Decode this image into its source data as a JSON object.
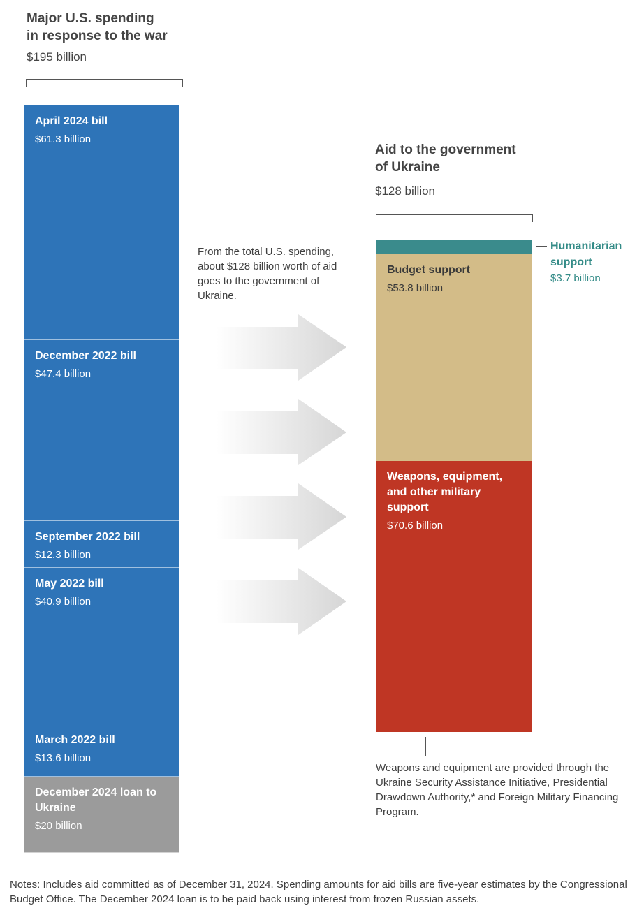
{
  "left": {
    "title_line1": "Major U.S. spending",
    "title_line2": "in response to the war",
    "total": "$195 billion"
  },
  "right": {
    "title_line1": "Aid to the government",
    "title_line2": "of Ukraine",
    "total": "$128 billion"
  },
  "middle_text": "From the total U.S. spending, about $128 billion worth of aid goes to the government of Ukraine.",
  "weapons_note": "Weapons and equipment are provided through the Ukraine Security Assistance Initiative, Presidential Drawdown Authority,* and Foreign Military Financing Program.",
  "footer": "Notes: Includes aid committed as of December 31, 2024. Spending amounts for aid bills are five-year estimates by the Congressional Budget Office. The December 2024 loan is to be paid back using interest from frozen Russian assets.",
  "colors": {
    "bills": "#2e74b8",
    "loan": "#9b9b9b",
    "humanitarian": "#3a8b8c",
    "budget": "#d3bc88",
    "weapons": "#bf3624",
    "arrow": "#d6d6d6"
  },
  "chart_data": [
    {
      "type": "bar",
      "stacked": true,
      "title": "Major U.S. spending in response to the war",
      "total": "$195 billion",
      "unit": "billion USD",
      "segments": [
        {
          "label": "April 2024 bill",
          "value": 61.3,
          "value_label": "$61.3 billion",
          "color": "#2e74b8"
        },
        {
          "label": "December 2022 bill",
          "value": 47.4,
          "value_label": "$47.4 billion",
          "color": "#2e74b8"
        },
        {
          "label": "September 2022 bill",
          "value": 12.3,
          "value_label": "$12.3 billion",
          "color": "#2e74b8"
        },
        {
          "label": "May 2022 bill",
          "value": 40.9,
          "value_label": "$40.9 billion",
          "color": "#2e74b8"
        },
        {
          "label": "March 2022 bill",
          "value": 13.6,
          "value_label": "$13.6 billion",
          "color": "#2e74b8"
        },
        {
          "label": "December 2024 loan to Ukraine",
          "value": 20,
          "value_label": "$20 billion",
          "color": "#9b9b9b"
        }
      ]
    },
    {
      "type": "bar",
      "stacked": true,
      "title": "Aid to the government of Ukraine",
      "total": "$128 billion",
      "unit": "billion USD",
      "segments": [
        {
          "label": "Humanitarian support",
          "value": 3.7,
          "value_label": "$3.7 billion",
          "color": "#3a8b8c"
        },
        {
          "label": "Budget support",
          "value": 53.8,
          "value_label": "$53.8 billion",
          "color": "#d3bc88"
        },
        {
          "label": "Weapons, equipment, and other military support",
          "value": 70.6,
          "value_label": "$70.6 billion",
          "color": "#bf3624"
        }
      ]
    }
  ]
}
